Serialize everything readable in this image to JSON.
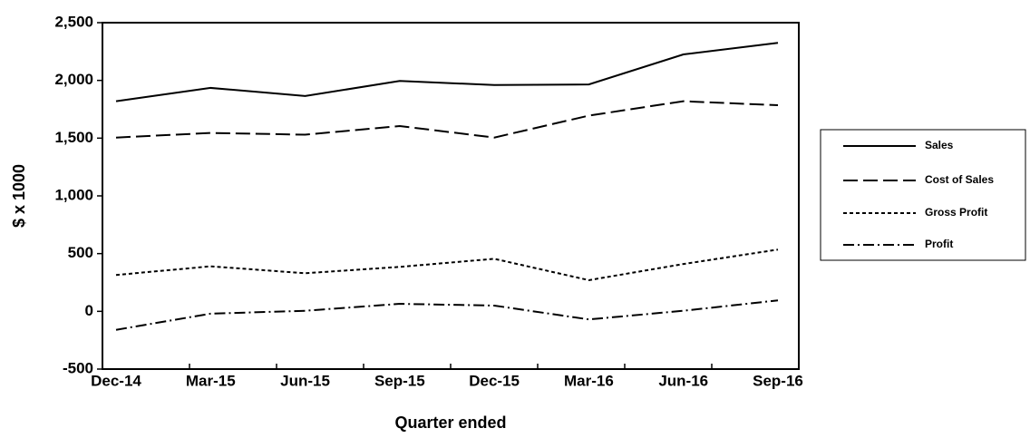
{
  "chart_data": {
    "type": "line",
    "xlabel": "Quarter ended",
    "ylabel": "$ x 1000",
    "categories": [
      "Dec-14",
      "Mar-15",
      "Jun-15",
      "Sep-15",
      "Dec-15",
      "Mar-16",
      "Jun-16",
      "Sep-16"
    ],
    "series": [
      {
        "name": "Sales",
        "color": "#000000",
        "dash": "solid",
        "values": [
          1820,
          1935,
          1865,
          1995,
          1960,
          1965,
          2225,
          2325
        ]
      },
      {
        "name": "Cost of Sales",
        "color": "#000000",
        "dash": "dashed",
        "values": [
          1505,
          1545,
          1530,
          1605,
          1505,
          1695,
          1820,
          1785
        ]
      },
      {
        "name": "Gross Profit",
        "color": "#000000",
        "dash": "dotted",
        "values": [
          315,
          390,
          330,
          385,
          455,
          270,
          410,
          535
        ]
      },
      {
        "name": "Profit",
        "color": "#000000",
        "dash": "dashdot",
        "values": [
          -160,
          -20,
          5,
          65,
          50,
          -70,
          5,
          95
        ]
      }
    ],
    "ylim": [
      -500,
      2500
    ],
    "yticks": [
      -500,
      0,
      500,
      {
        "value": 1000,
        "label": "1,000"
      },
      {
        "value": 1500,
        "label": "1,500"
      },
      {
        "value": 2000,
        "label": "2,000"
      },
      {
        "value": 2500,
        "label": "2,500"
      }
    ],
    "grid": false,
    "legend": "right"
  }
}
